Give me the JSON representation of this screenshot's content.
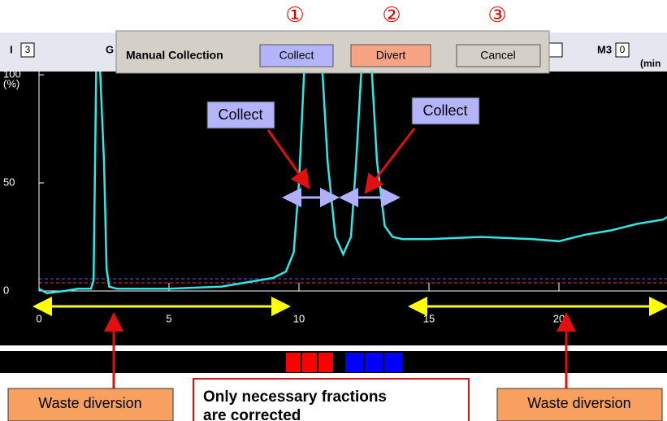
{
  "steps": [
    "①",
    "②",
    "③"
  ],
  "header": {
    "left_label": "I",
    "left_value": "3",
    "second_label": "G",
    "right_label": "M3",
    "right_value": "0",
    "right_unit": "(min"
  },
  "dialog": {
    "title": "Manual Collection",
    "buttons": [
      "Collect",
      "Divert",
      "Cancel"
    ]
  },
  "chromatogram": {
    "xlim": [
      0,
      24.5
    ],
    "ylim": [
      0,
      100
    ],
    "xticks": [
      0,
      5,
      10,
      15,
      20
    ],
    "yticks": [
      0,
      50,
      100
    ],
    "y_unit": "(%)",
    "trace_color": "#33e6e6",
    "trace_x": [
      0,
      0.3,
      1,
      1.5,
      2,
      2.1,
      2.2,
      2.35,
      2.5,
      2.6,
      2.7,
      3,
      5,
      7,
      8,
      9,
      9.5,
      9.8,
      10,
      10.2,
      10.4,
      10.9,
      11.1,
      11.4,
      11.7,
      12,
      12.2,
      12.4,
      12.8,
      13.0,
      13.3,
      13.6,
      14,
      15,
      17,
      19,
      20,
      21,
      22,
      23,
      24,
      24.3
    ],
    "trace_values": [
      1,
      -1,
      0,
      1,
      1,
      5,
      102,
      102,
      60,
      10,
      2,
      1,
      1,
      2,
      4,
      6,
      9,
      18,
      50,
      102,
      102,
      102,
      60,
      25,
      17,
      25,
      60,
      102,
      102,
      60,
      30,
      25,
      24,
      24,
      25,
      24,
      23,
      26,
      28,
      31,
      33,
      35
    ]
  },
  "annotations": {
    "collect_left": "Collect",
    "collect_right": "Collect",
    "waste_left": "Waste diversion",
    "waste_right": "Waste diversion",
    "note": [
      "Only necessary fractions",
      "are corrected"
    ]
  }
}
